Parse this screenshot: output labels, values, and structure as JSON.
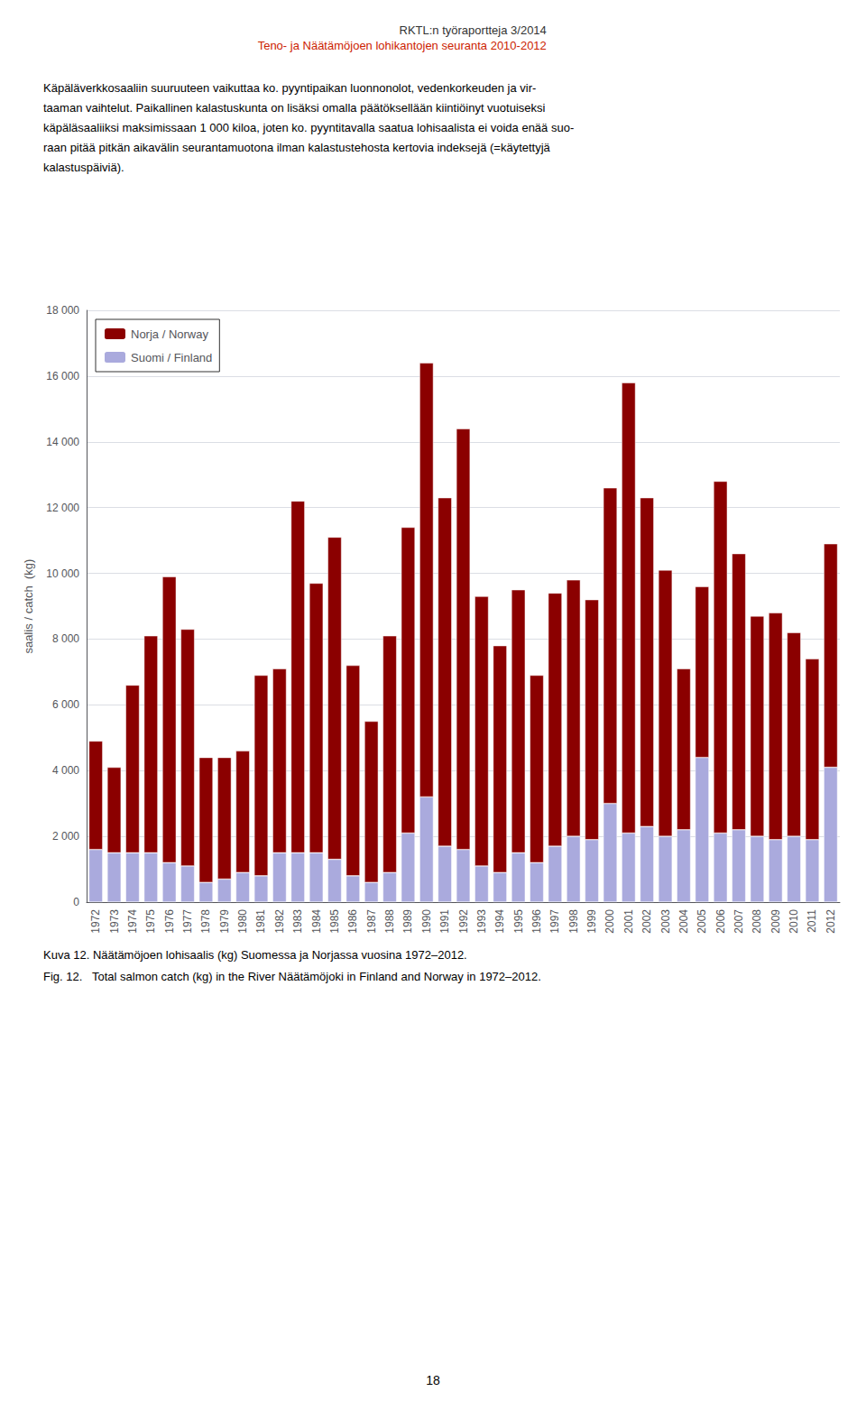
{
  "chart_data": {
    "type": "bar",
    "stacked": true,
    "title": "RKTL:n työraportteja 3/2014",
    "subtitle": "Teno- ja Näätämöjoen lohikantojen seuranta 2010-2012",
    "annotations": [
      "Käpäläverkkosaaliin suuruuteen vaikuttaa ko. pyyntipaikan luonnonolot, vedenkorkeuden ja vir-\ntaaman vaihtelut. Paikallinen kalastuskunta on lisäksi omalla päätöksellään kiintiöinyt vuotuiseksi\nkäpäläsaaliiksi maksimissaan 1 000 kiloa, joten ko. pyyntitavalla saatua lohisaalista ei voida enää suo-\nraan pitää pitkän aikavälin seurantamuotona ilman kalastustehosta kertovia indeksejä (=käytettyjä\nkalastuspäiviä).",
      "Kuva 12. Näätämöjoen lohisaalis (kg) Suomessa ja Norjassa vuosina 1972–2012.",
      "Fig. 12.   Total salmon catch (kg) in the River Näätämöjoki in Finland and Norway in 1972–2012.",
      "18"
    ],
    "ylabel": "saalis / catch  (kg)",
    "categories": [
      "1972",
      "1973",
      "1974",
      "1975",
      "1976",
      "1977",
      "1978",
      "1979",
      "1980",
      "1981",
      "1982",
      "1983",
      "1984",
      "1985",
      "1986",
      "1987",
      "1988",
      "1989",
      "1990",
      "1991",
      "1992",
      "1993",
      "1994",
      "1995",
      "1996",
      "1997",
      "1998",
      "1999",
      "2000",
      "2001",
      "2002",
      "2003",
      "2004",
      "2005",
      "2006",
      "2007",
      "2008",
      "2009",
      "2010",
      "2011",
      "2012"
    ],
    "series": [
      {
        "name": "Suomi / Finland",
        "color": "#AAAADD",
        "values": [
          1600,
          1500,
          1500,
          1500,
          1200,
          1100,
          600,
          700,
          900,
          800,
          1500,
          1500,
          1500,
          1300,
          800,
          600,
          900,
          2100,
          3200,
          1700,
          1600,
          1100,
          900,
          1500,
          1200,
          1700,
          2000,
          1900,
          3000,
          2100,
          2300,
          2000,
          2200,
          4400,
          2100,
          2200,
          2000,
          1900,
          2000,
          1900,
          4100
        ]
      },
      {
        "name": "Norja / Norway",
        "color": "#8B0000",
        "values": [
          3300,
          2600,
          5100,
          6600,
          8700,
          7200,
          3800,
          3700,
          3700,
          6100,
          5600,
          10700,
          8200,
          9800,
          6400,
          4900,
          7200,
          9300,
          13200,
          10600,
          12800,
          8200,
          6900,
          8000,
          5700,
          7700,
          7800,
          7300,
          9600,
          13700,
          10000,
          8100,
          4900,
          5200,
          10700,
          8400,
          6700,
          6900,
          6200,
          5500,
          6800
        ]
      }
    ],
    "ylim": [
      0,
      18000
    ],
    "yticks": [
      0,
      {
        "value": 2000,
        "label": "2 000"
      },
      {
        "value": 4000,
        "label": "4 000"
      },
      {
        "value": 6000,
        "label": "6 000"
      },
      {
        "value": 8000,
        "label": "8 000"
      },
      {
        "value": 10000,
        "label": "10 000"
      },
      {
        "value": 12000,
        "label": "12 000"
      },
      {
        "value": 14000,
        "label": "14 000"
      },
      {
        "value": 16000,
        "label": "16 000"
      },
      {
        "value": 18000,
        "label": "18 000"
      }
    ],
    "grid": true,
    "legend": "upper left"
  }
}
